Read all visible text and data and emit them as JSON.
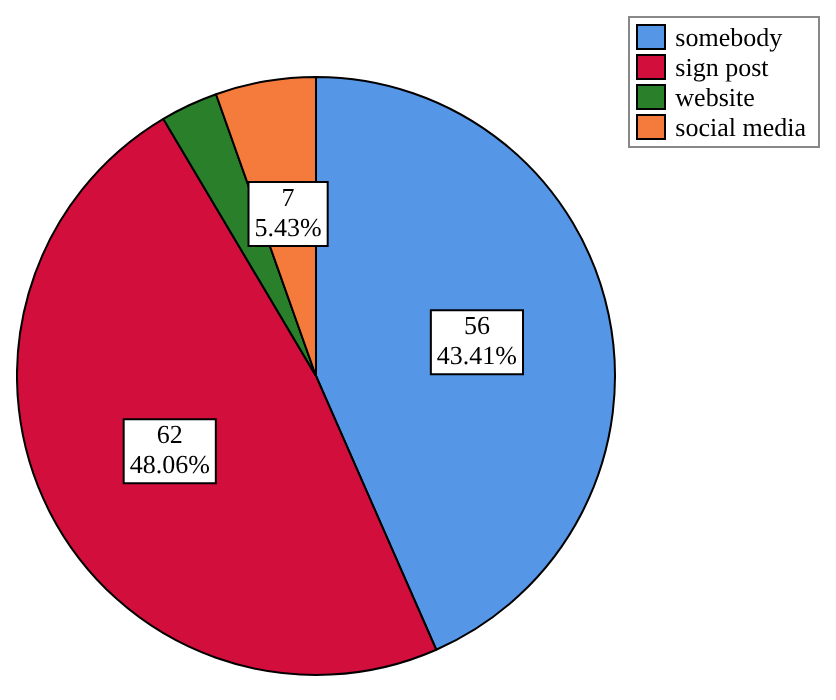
{
  "chart_data": {
    "type": "pie",
    "categories": [
      "somebody",
      "sign post",
      "website",
      "social media"
    ],
    "values": [
      56,
      62,
      4,
      7
    ],
    "colors": [
      "#5596e6",
      "#d20f3c",
      "#2a7f2a",
      "#f47b3c"
    ],
    "value_labels": [
      "56\n43.41%",
      "62\n48.06%",
      null,
      "7\n5.43%"
    ],
    "legend": "top right"
  }
}
